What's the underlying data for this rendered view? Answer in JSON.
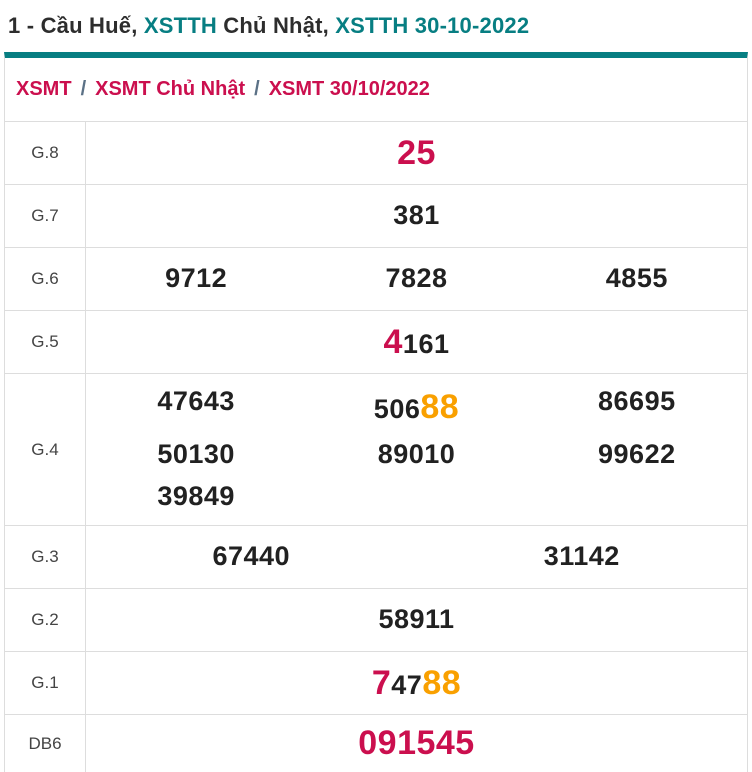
{
  "palette": {
    "teal": "#077e82",
    "red": "#cb0f4e",
    "orange": "#f9a000",
    "digit": "#212121",
    "label": "#444444",
    "border": "#dddddd",
    "separator": "#5b7186",
    "titledark": "#2d2d2d"
  },
  "header": {
    "title_parts": [
      {
        "text": "1 - Cầu Huế, ",
        "color": "dark"
      },
      {
        "text": "XSTTH",
        "color": "teal"
      },
      {
        "text": " Chủ Nhật, ",
        "color": "dark"
      },
      {
        "text": "XSTTH 30-10-2022",
        "color": "teal"
      }
    ]
  },
  "breadcrumb": {
    "separator": "/",
    "items": [
      {
        "label": "XSMT"
      },
      {
        "label": "XSMT Chủ Nhật"
      },
      {
        "label": "XSMT 30/10/2022"
      }
    ]
  },
  "results": {
    "rows": [
      {
        "label": "G.8",
        "lines": [
          [
            [
              {
                "text": "25",
                "style": "red-large"
              }
            ]
          ]
        ]
      },
      {
        "label": "G.7",
        "lines": [
          [
            [
              {
                "text": "381",
                "style": "black"
              }
            ]
          ]
        ]
      },
      {
        "label": "G.6",
        "lines": [
          [
            [
              {
                "text": "9712",
                "style": "black"
              }
            ],
            [
              {
                "text": "7828",
                "style": "black"
              }
            ],
            [
              {
                "text": "4855",
                "style": "black"
              }
            ]
          ]
        ]
      },
      {
        "label": "G.5",
        "lines": [
          [
            [
              {
                "text": "4",
                "style": "red-large"
              },
              {
                "text": "161",
                "style": "black"
              }
            ]
          ]
        ]
      },
      {
        "label": "G.4",
        "lines": [
          [
            [
              {
                "text": "47643",
                "style": "black"
              }
            ],
            [
              {
                "text": "506",
                "style": "black"
              },
              {
                "text": "88",
                "style": "orange-large"
              }
            ],
            [
              {
                "text": "86695",
                "style": "black"
              }
            ]
          ],
          [
            [
              {
                "text": "50130",
                "style": "black"
              }
            ],
            [
              {
                "text": "89010",
                "style": "black"
              }
            ],
            [
              {
                "text": "99622",
                "style": "black"
              }
            ]
          ],
          [
            [
              {
                "text": "39849",
                "style": "black"
              }
            ],
            [
              {
                "text": "",
                "style": "black"
              }
            ],
            [
              {
                "text": "",
                "style": "black"
              }
            ]
          ]
        ]
      },
      {
        "label": "G.3",
        "lines": [
          [
            [
              {
                "text": "67440",
                "style": "black"
              }
            ],
            [
              {
                "text": "31142",
                "style": "black"
              }
            ]
          ]
        ]
      },
      {
        "label": "G.2",
        "lines": [
          [
            [
              {
                "text": "58911",
                "style": "black"
              }
            ]
          ]
        ]
      },
      {
        "label": "G.1",
        "lines": [
          [
            [
              {
                "text": "7",
                "style": "red-large"
              },
              {
                "text": "47",
                "style": "black"
              },
              {
                "text": "88",
                "style": "orange-large"
              }
            ]
          ]
        ]
      },
      {
        "label": "DB6",
        "lines": [
          [
            [
              {
                "text": "091545",
                "style": "red-large"
              }
            ]
          ]
        ]
      }
    ]
  }
}
